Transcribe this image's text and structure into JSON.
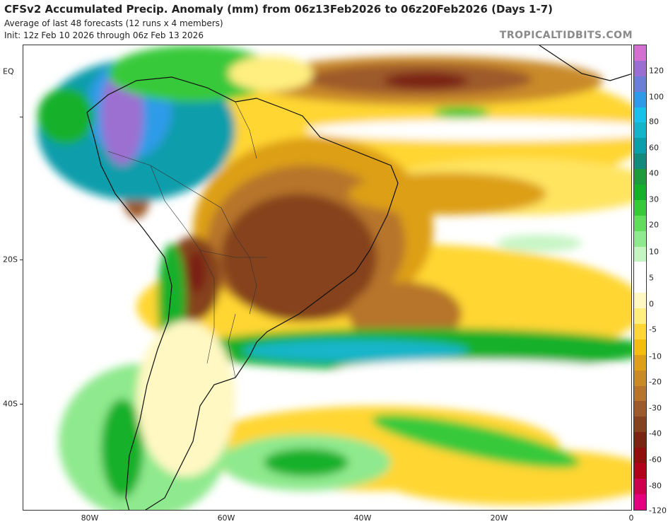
{
  "header": {
    "title": "CFSv2 Accumulated Precip. Anomaly (mm) from 06z13Feb2026 to 06z20Feb2026 (Days 1-7)",
    "subtitle1": "Average of last 48 forecasts (12 runs x 4 members)",
    "subtitle2": "Init: 12z Feb 10 2026 through 06z Feb 13 2026",
    "brand": "TROPICALTIDBITS.COM"
  },
  "axes": {
    "lat_labels": [
      "EQ",
      "20S",
      "40S"
    ],
    "lon_labels": [
      "80W",
      "60W",
      "40W",
      "20W",
      "0"
    ]
  },
  "colorbar": {
    "labels": [
      "120",
      "100",
      "80",
      "60",
      "40",
      "30",
      "20",
      "10",
      "5",
      "0",
      "-5",
      "-10",
      "-20",
      "-30",
      "-40",
      "-60",
      "-80",
      "-120"
    ],
    "colors": [
      "#d36fd1",
      "#9b6fd1",
      "#6b7fd6",
      "#2f9be8",
      "#16c2ea",
      "#12b5c9",
      "#0e9dab",
      "#138a7c",
      "#1f9a3c",
      "#17b02b",
      "#37c93a",
      "#62dc5c",
      "#8fe98e",
      "#c6f5c4",
      "#ffffff",
      "#ffffff",
      "#fff8c2",
      "#ffee80",
      "#ffd633",
      "#f2bd0c",
      "#dd9f17",
      "#c98a2a",
      "#b6742c",
      "#9d5a2b",
      "#85421f",
      "#7a2413",
      "#8f0f0f",
      "#b3001b",
      "#cf004d",
      "#e6007e"
    ],
    "accent": "#8a8a8a"
  }
}
